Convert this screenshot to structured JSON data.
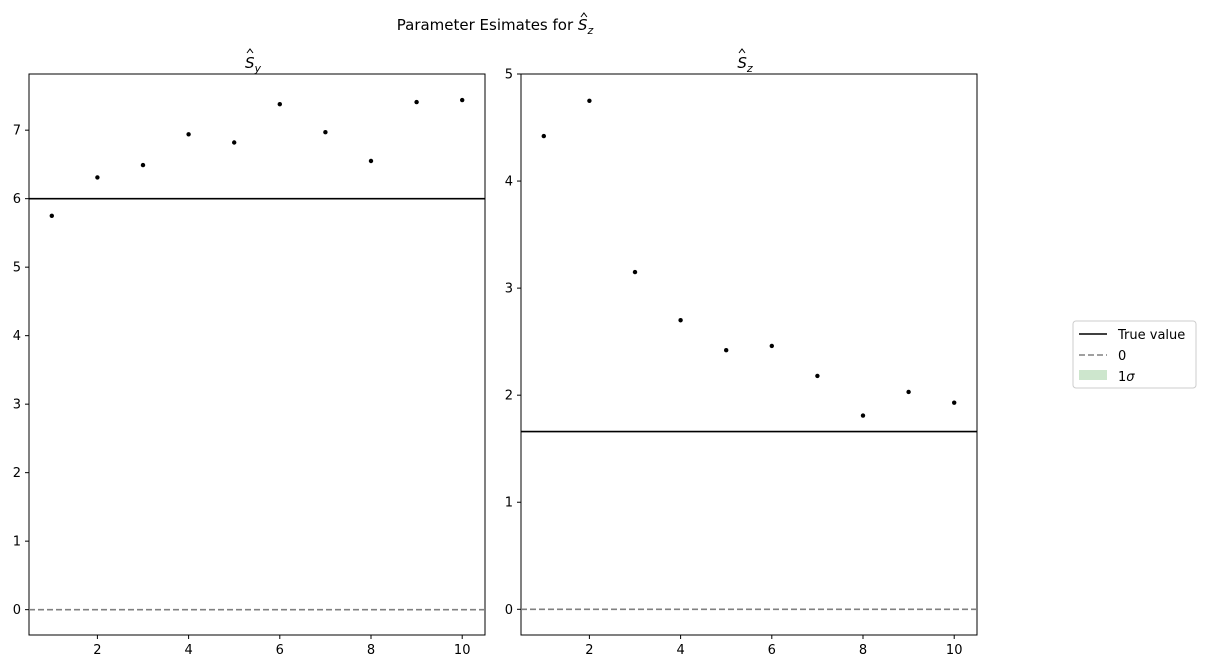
{
  "figure": {
    "suptitle_text": "Parameter Esimates for ",
    "suptitle_symbol": "S",
    "suptitle_subscript": "z"
  },
  "legend": {
    "placement": "right, outside plots",
    "entries": [
      {
        "label": "True value",
        "style": "solid",
        "color": "#000000"
      },
      {
        "label": "0",
        "style": "dashed",
        "color": "#808080"
      },
      {
        "label_main": "1",
        "label_symbol": "σ",
        "style": "patch",
        "color": "#cde6cd"
      }
    ]
  },
  "chart_data": [
    {
      "type": "scatter",
      "title_symbol": "S",
      "title_subscript": "y",
      "x": [
        1,
        2,
        3,
        4,
        5,
        6,
        7,
        8,
        9,
        10
      ],
      "values": [
        5.75,
        6.31,
        6.49,
        6.94,
        6.82,
        7.38,
        6.97,
        6.55,
        7.41,
        7.44
      ],
      "true_value": 6.0,
      "zero_line": 0,
      "xlim": [
        0.5,
        10.5
      ],
      "ylim": [
        -0.37,
        7.82
      ],
      "xticks": [
        2,
        4,
        6,
        8,
        10
      ],
      "yticks": [
        0,
        1,
        2,
        3,
        4,
        5,
        6,
        7
      ],
      "grid": false,
      "marker_color": "#000000"
    },
    {
      "type": "scatter",
      "title_symbol": "S",
      "title_subscript": "z",
      "x": [
        1,
        2,
        3,
        4,
        5,
        6,
        7,
        8,
        9,
        10
      ],
      "values": [
        4.42,
        4.75,
        3.15,
        2.7,
        2.42,
        2.46,
        2.18,
        1.81,
        2.03,
        1.93
      ],
      "true_value": 1.66,
      "zero_line": 0,
      "xlim": [
        0.5,
        10.5
      ],
      "ylim": [
        -0.24,
        5.0
      ],
      "xticks": [
        2,
        4,
        6,
        8,
        10
      ],
      "yticks": [
        0,
        1,
        2,
        3,
        4,
        5
      ],
      "grid": false,
      "marker_color": "#000000"
    }
  ]
}
